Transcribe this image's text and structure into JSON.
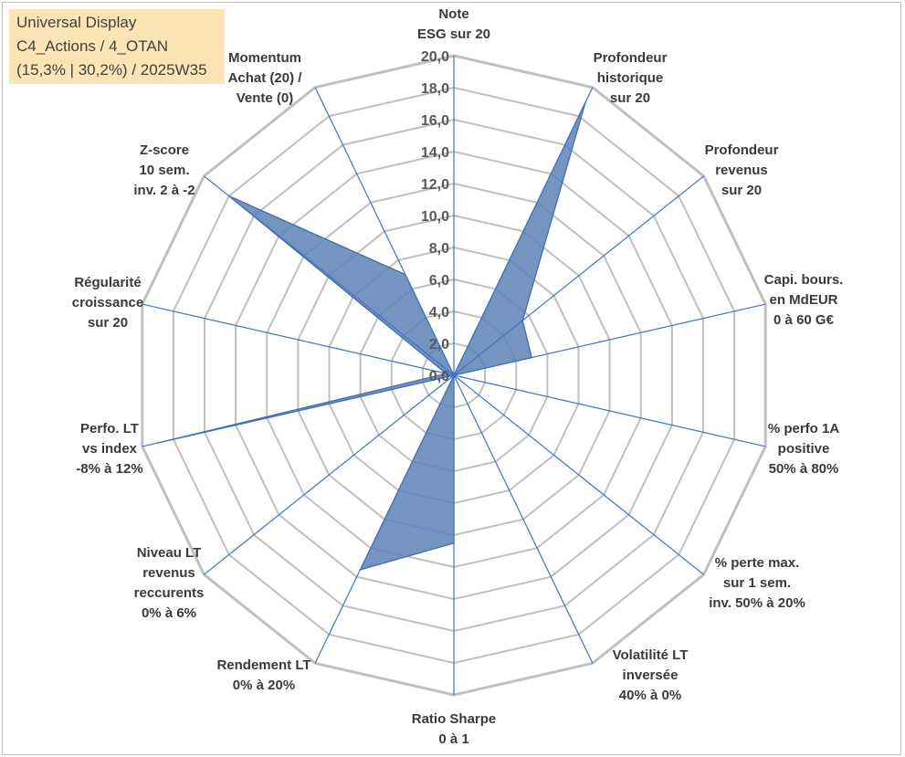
{
  "info_box": {
    "line1": "Universal Display",
    "line2": "C4_Actions / 4_OTAN",
    "line3": "(15,3% | 30,2%) / 2025W35"
  },
  "chart_data": {
    "type": "radar",
    "title": "",
    "rmin": 0,
    "rmax": 20,
    "tick_step": 2,
    "tick_labels": [
      "0,0",
      "2,0",
      "4,0",
      "6,0",
      "8,0",
      "10,0",
      "12,0",
      "14,0",
      "16,0",
      "18,0",
      "20,0"
    ],
    "grid": true,
    "axes": [
      {
        "label": [
          "Note",
          "ESG sur 20"
        ]
      },
      {
        "label": [
          "Profondeur",
          "historique",
          "sur 20"
        ]
      },
      {
        "label": [
          "Profondeur",
          "revenus",
          "sur 20"
        ]
      },
      {
        "label": [
          "Capi. bours.",
          "en MdEUR",
          "0 à 60 G€"
        ]
      },
      {
        "label": [
          "% perfo 1A",
          "positive",
          "50% à 80%"
        ]
      },
      {
        "label": [
          "% perte max.",
          "sur 1 sem.",
          "inv. 50% à 20%"
        ]
      },
      {
        "label": [
          "Volatilité LT",
          "inversée",
          "40% à 0%"
        ]
      },
      {
        "label": [
          "Ratio Sharpe",
          "0 à 1"
        ]
      },
      {
        "label": [
          "Rendement LT",
          "0% à 20%"
        ]
      },
      {
        "label": [
          "Niveau LT",
          "revenus",
          "reccurents",
          "0% à 6%"
        ]
      },
      {
        "label": [
          "Perfo. LT",
          "vs index",
          "-8% à 12%"
        ]
      },
      {
        "label": [
          "Régularité",
          "croissance",
          "sur 20"
        ]
      },
      {
        "label": [
          "Z-score",
          "10 sem.",
          "inv. 2 à -2"
        ]
      },
      {
        "label": [
          "Momentum",
          "Achat (20) /",
          "Vente (0)"
        ]
      }
    ],
    "series": [
      {
        "values": [
          0,
          19.0,
          5.5,
          5.0,
          0,
          0,
          0,
          10.5,
          13.5,
          0,
          19.0,
          0.5,
          18.0,
          7.0
        ],
        "fill": "#5b82b4",
        "stroke": "#3e6aa3"
      }
    ],
    "colors": {
      "grid_ring": "#bfbfbf",
      "spoke": "#4472c4",
      "tick_text": "#595959",
      "info_bg": "#fbe5b6"
    }
  }
}
